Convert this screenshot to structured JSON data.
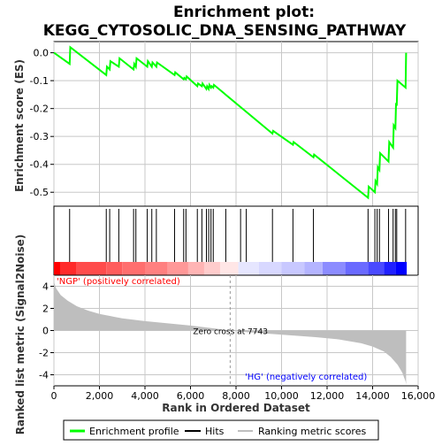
{
  "chart_data": {
    "type": "line",
    "title_line1": "Enrichment plot:",
    "title_line2": "KEGG_CYTOSOLIC_DNA_SENSING_PATHWAY",
    "top_ylabel": "Enrichment score (ES)",
    "bottom_ylabel_line1": "Ranked list metric (Signal2Noise)",
    "bottom_ylabel_line2": "",
    "xlabel": "Rank in Ordered Dataset",
    "xlim": [
      0,
      16000
    ],
    "es_ylim": [
      -0.55,
      0.04
    ],
    "metric_ylim": [
      -5,
      5
    ],
    "x_ticks": [
      "0",
      "2,000",
      "4,000",
      "6,000",
      "8,000",
      "10,000",
      "12,000",
      "14,000",
      "16,000"
    ],
    "x_tick_values": [
      0,
      2000,
      4000,
      6000,
      8000,
      10000,
      12000,
      14000,
      16000
    ],
    "es_ticks": [
      "0.0",
      "-0.1",
      "-0.2",
      "-0.3",
      "-0.4",
      "-0.5"
    ],
    "es_tick_values": [
      0.0,
      -0.1,
      -0.2,
      -0.3,
      -0.4,
      -0.5
    ],
    "metric_ticks": [
      "4",
      "2",
      "0",
      "-2",
      "-4"
    ],
    "metric_tick_values": [
      4,
      2,
      0,
      -2,
      -4
    ],
    "enrichment_profile": [
      [
        0,
        0.0
      ],
      [
        690,
        -0.04
      ],
      [
        720,
        0.02
      ],
      [
        2300,
        -0.08
      ],
      [
        2330,
        -0.05
      ],
      [
        2450,
        -0.06
      ],
      [
        2480,
        -0.03
      ],
      [
        2850,
        -0.05
      ],
      [
        2880,
        -0.02
      ],
      [
        3500,
        -0.06
      ],
      [
        3530,
        -0.04
      ],
      [
        3600,
        -0.05
      ],
      [
        3630,
        -0.02
      ],
      [
        4100,
        -0.05
      ],
      [
        4130,
        -0.03
      ],
      [
        4300,
        -0.05
      ],
      [
        4330,
        -0.035
      ],
      [
        4500,
        -0.05
      ],
      [
        4530,
        -0.035
      ],
      [
        5300,
        -0.08
      ],
      [
        5330,
        -0.07
      ],
      [
        5700,
        -0.095
      ],
      [
        5730,
        -0.09
      ],
      [
        5800,
        -0.095
      ],
      [
        5830,
        -0.085
      ],
      [
        6300,
        -0.12
      ],
      [
        6330,
        -0.11
      ],
      [
        6500,
        -0.12
      ],
      [
        6530,
        -0.11
      ],
      [
        6700,
        -0.13
      ],
      [
        6730,
        -0.12
      ],
      [
        6800,
        -0.13
      ],
      [
        6830,
        -0.115
      ],
      [
        6900,
        -0.125
      ],
      [
        6930,
        -0.12
      ],
      [
        7000,
        -0.125
      ],
      [
        7030,
        -0.115
      ],
      [
        9600,
        -0.29
      ],
      [
        9630,
        -0.28
      ],
      [
        10500,
        -0.33
      ],
      [
        10530,
        -0.32
      ],
      [
        11400,
        -0.375
      ],
      [
        11430,
        -0.365
      ],
      [
        13800,
        -0.52
      ],
      [
        13830,
        -0.48
      ],
      [
        14100,
        -0.5
      ],
      [
        14130,
        -0.46
      ],
      [
        14200,
        -0.47
      ],
      [
        14230,
        -0.41
      ],
      [
        14300,
        -0.42
      ],
      [
        14330,
        -0.36
      ],
      [
        14700,
        -0.39
      ],
      [
        14730,
        -0.32
      ],
      [
        14900,
        -0.34
      ],
      [
        14930,
        -0.26
      ],
      [
        15000,
        -0.27
      ],
      [
        15030,
        -0.18
      ],
      [
        15060,
        -0.19
      ],
      [
        15090,
        -0.1
      ],
      [
        15450,
        -0.125
      ],
      [
        15470,
        0.0
      ]
    ],
    "hits": [
      690,
      2300,
      2450,
      2850,
      3500,
      3600,
      4100,
      4300,
      4500,
      5300,
      5700,
      5800,
      6300,
      6500,
      6700,
      6800,
      6900,
      7000,
      7550,
      8200,
      8450,
      9600,
      10500,
      11400,
      13800,
      14100,
      14200,
      14300,
      14700,
      14900,
      15000,
      15060,
      15450
    ],
    "heatmap_bands": [
      {
        "start": 0,
        "end": 300,
        "color": "#ff0000"
      },
      {
        "start": 300,
        "end": 1000,
        "color": "#ff2a2a"
      },
      {
        "start": 1000,
        "end": 2300,
        "color": "#ff4c4c"
      },
      {
        "start": 2300,
        "end": 3000,
        "color": "#ff5c5c"
      },
      {
        "start": 3000,
        "end": 4000,
        "color": "#ff6e6e"
      },
      {
        "start": 4000,
        "end": 5000,
        "color": "#ff8080"
      },
      {
        "start": 5000,
        "end": 5900,
        "color": "#ff9898"
      },
      {
        "start": 5900,
        "end": 6600,
        "color": "#ffb4b4"
      },
      {
        "start": 6600,
        "end": 7300,
        "color": "#ffcccc"
      },
      {
        "start": 7300,
        "end": 8100,
        "color": "#ffe6e6"
      },
      {
        "start": 8100,
        "end": 9000,
        "color": "#e6e6ff"
      },
      {
        "start": 9000,
        "end": 10000,
        "color": "#d8d8ff"
      },
      {
        "start": 10000,
        "end": 11000,
        "color": "#c8c8ff"
      },
      {
        "start": 11000,
        "end": 11800,
        "color": "#b4b4ff"
      },
      {
        "start": 11800,
        "end": 12800,
        "color": "#8c8cff"
      },
      {
        "start": 12800,
        "end": 13800,
        "color": "#6a6aff"
      },
      {
        "start": 13800,
        "end": 14500,
        "color": "#4a4aff"
      },
      {
        "start": 14500,
        "end": 15000,
        "color": "#2020ff"
      },
      {
        "start": 15000,
        "end": 15500,
        "color": "#0000ff"
      }
    ],
    "metric_curve": [
      [
        0,
        4.4
      ],
      [
        100,
        3.8
      ],
      [
        300,
        3.2
      ],
      [
        600,
        2.7
      ],
      [
        1000,
        2.2
      ],
      [
        1500,
        1.8
      ],
      [
        2000,
        1.5
      ],
      [
        3000,
        1.1
      ],
      [
        4000,
        0.85
      ],
      [
        5000,
        0.65
      ],
      [
        6000,
        0.45
      ],
      [
        7000,
        0.2
      ],
      [
        7743,
        0.0
      ],
      [
        8500,
        -0.15
      ],
      [
        9500,
        -0.3
      ],
      [
        10500,
        -0.45
      ],
      [
        11500,
        -0.6
      ],
      [
        12500,
        -0.8
      ],
      [
        13500,
        -1.15
      ],
      [
        14000,
        -1.45
      ],
      [
        14500,
        -1.9
      ],
      [
        14800,
        -2.4
      ],
      [
        15100,
        -3.1
      ],
      [
        15300,
        -3.8
      ],
      [
        15450,
        -4.6
      ],
      [
        15470,
        -4.9
      ]
    ],
    "zero_cross_text": "Zero cross at 7743",
    "zero_cross_value": 7743,
    "pos_label": "'NGP' (positively correlated)",
    "neg_label": "'HG' (negatively correlated)",
    "legend": [
      "Enrichment profile",
      "Hits",
      "Ranking metric scores"
    ],
    "colors": {
      "profile": "#00ff00",
      "hits": "#000000",
      "metric_fill": "#bebebe",
      "pos_label": "#ff0000",
      "neg_label": "#0000ff",
      "grid": "#c8c8c8"
    }
  }
}
